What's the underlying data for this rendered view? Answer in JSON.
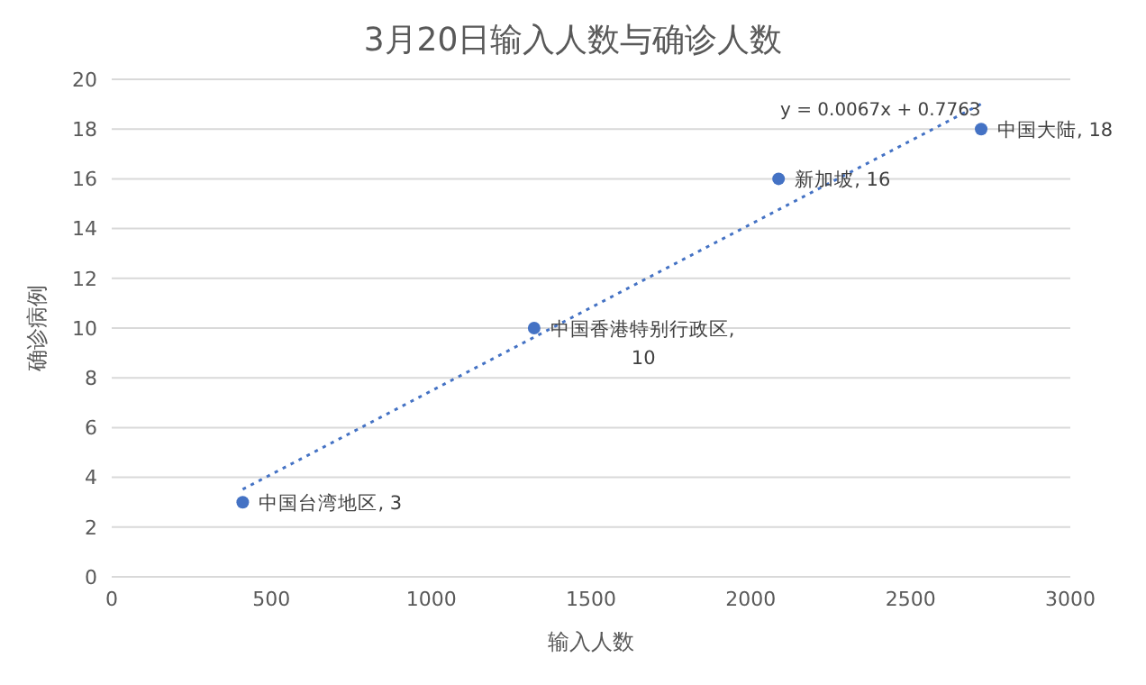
{
  "chart_data": {
    "type": "scatter",
    "title": "3月20日输入人数与确诊人数",
    "xlabel": "输入人数",
    "ylabel": "确诊病例",
    "xlim": [
      0,
      3000
    ],
    "xticks": [
      0,
      500,
      1000,
      1500,
      2000,
      2500,
      3000
    ],
    "ylim": [
      0,
      20
    ],
    "yticks": [
      0,
      2,
      4,
      6,
      8,
      10,
      12,
      14,
      16,
      18,
      20
    ],
    "grid": "y",
    "legend": false,
    "marker": "circle",
    "series": [
      {
        "color": "#4472c4",
        "x": [
          410,
          1322,
          2087,
          2721
        ],
        "values": [
          3,
          10,
          16,
          18
        ],
        "value_labels": [
          "中国台湾地区, 3",
          "中国香港特别行政区, 10",
          "新加坡, 16",
          "中国大陆, 18"
        ]
      },
      {
        "type": "line",
        "color": "#4472c4",
        "line_style": "dotted",
        "marker": "none",
        "x": [
          410,
          2721
        ],
        "values": [
          3.52,
          19.01
        ]
      }
    ],
    "annotations": [
      "y = 0.0067x + 0.7763"
    ]
  }
}
